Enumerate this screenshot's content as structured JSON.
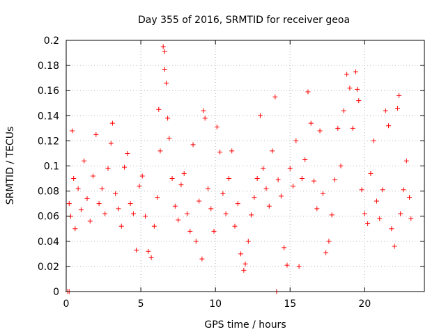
{
  "chart_data": {
    "type": "scatter",
    "title": "Day 355 of 2016, SRMTID for receiver geoa",
    "xlabel": "GPS time / hours",
    "ylabel": "SRMTID / TECUs",
    "xlim": [
      0,
      24
    ],
    "ylim": [
      0,
      0.2
    ],
    "xticks": [
      0,
      5,
      10,
      15,
      20
    ],
    "xtick_labels": [
      "0",
      "5",
      "10",
      "15",
      "20"
    ],
    "yticks": [
      0,
      0.02,
      0.04,
      0.06,
      0.08,
      0.1,
      0.12,
      0.14,
      0.16,
      0.18,
      0.2
    ],
    "ytick_labels": [
      "0",
      "0.02",
      "0.04",
      "0.06",
      "0.08",
      "0.1",
      "0.12",
      "0.14",
      "0.16",
      "0.18",
      "0.2"
    ],
    "grid": true,
    "marker": "+",
    "color": "#ff0000",
    "series": [
      {
        "name": "SRMTID",
        "points": [
          [
            0.1,
            0.0
          ],
          [
            0.2,
            0.0
          ],
          [
            14.1,
            0.0
          ],
          [
            0.2,
            0.07
          ],
          [
            0.3,
            0.06
          ],
          [
            0.4,
            0.128
          ],
          [
            0.5,
            0.09
          ],
          [
            0.6,
            0.05
          ],
          [
            0.8,
            0.082
          ],
          [
            1.0,
            0.065
          ],
          [
            1.2,
            0.104
          ],
          [
            1.4,
            0.074
          ],
          [
            1.6,
            0.056
          ],
          [
            1.8,
            0.092
          ],
          [
            2.0,
            0.125
          ],
          [
            2.2,
            0.07
          ],
          [
            2.4,
            0.082
          ],
          [
            2.6,
            0.062
          ],
          [
            2.8,
            0.098
          ],
          [
            3.0,
            0.118
          ],
          [
            3.1,
            0.134
          ],
          [
            3.3,
            0.078
          ],
          [
            3.5,
            0.066
          ],
          [
            3.7,
            0.052
          ],
          [
            3.9,
            0.099
          ],
          [
            4.1,
            0.11
          ],
          [
            4.3,
            0.07
          ],
          [
            4.5,
            0.062
          ],
          [
            4.7,
            0.033
          ],
          [
            4.9,
            0.084
          ],
          [
            5.1,
            0.092
          ],
          [
            5.3,
            0.06
          ],
          [
            5.5,
            0.032
          ],
          [
            5.7,
            0.027
          ],
          [
            5.9,
            0.052
          ],
          [
            6.1,
            0.075
          ],
          [
            6.2,
            0.145
          ],
          [
            6.3,
            0.112
          ],
          [
            6.5,
            0.195
          ],
          [
            6.6,
            0.191
          ],
          [
            6.6,
            0.177
          ],
          [
            6.7,
            0.166
          ],
          [
            6.8,
            0.138
          ],
          [
            6.9,
            0.122
          ],
          [
            7.1,
            0.09
          ],
          [
            7.3,
            0.068
          ],
          [
            7.5,
            0.057
          ],
          [
            7.7,
            0.085
          ],
          [
            7.9,
            0.094
          ],
          [
            8.1,
            0.062
          ],
          [
            8.3,
            0.048
          ],
          [
            8.5,
            0.117
          ],
          [
            8.7,
            0.04
          ],
          [
            8.9,
            0.072
          ],
          [
            9.1,
            0.026
          ],
          [
            9.2,
            0.144
          ],
          [
            9.3,
            0.138
          ],
          [
            9.5,
            0.082
          ],
          [
            9.7,
            0.066
          ],
          [
            9.9,
            0.048
          ],
          [
            10.1,
            0.131
          ],
          [
            10.3,
            0.111
          ],
          [
            10.5,
            0.078
          ],
          [
            10.7,
            0.062
          ],
          [
            10.9,
            0.09
          ],
          [
            11.1,
            0.112
          ],
          [
            11.3,
            0.052
          ],
          [
            11.5,
            0.07
          ],
          [
            11.7,
            0.03
          ],
          [
            11.9,
            0.017
          ],
          [
            12.0,
            0.022
          ],
          [
            12.2,
            0.04
          ],
          [
            12.4,
            0.061
          ],
          [
            12.6,
            0.075
          ],
          [
            12.8,
            0.09
          ],
          [
            13.0,
            0.14
          ],
          [
            13.2,
            0.098
          ],
          [
            13.4,
            0.082
          ],
          [
            13.6,
            0.068
          ],
          [
            13.8,
            0.112
          ],
          [
            14.0,
            0.155
          ],
          [
            14.2,
            0.089
          ],
          [
            14.4,
            0.076
          ],
          [
            14.6,
            0.035
          ],
          [
            14.8,
            0.021
          ],
          [
            15.0,
            0.098
          ],
          [
            15.2,
            0.084
          ],
          [
            15.4,
            0.12
          ],
          [
            15.6,
            0.02
          ],
          [
            15.8,
            0.09
          ],
          [
            16.0,
            0.105
          ],
          [
            16.2,
            0.159
          ],
          [
            16.4,
            0.134
          ],
          [
            16.6,
            0.088
          ],
          [
            16.8,
            0.066
          ],
          [
            17.0,
            0.128
          ],
          [
            17.2,
            0.078
          ],
          [
            17.4,
            0.031
          ],
          [
            17.6,
            0.04
          ],
          [
            17.8,
            0.061
          ],
          [
            18.0,
            0.089
          ],
          [
            18.2,
            0.13
          ],
          [
            18.4,
            0.1
          ],
          [
            18.6,
            0.144
          ],
          [
            18.8,
            0.173
          ],
          [
            19.0,
            0.162
          ],
          [
            19.2,
            0.13
          ],
          [
            19.4,
            0.175
          ],
          [
            19.5,
            0.161
          ],
          [
            19.6,
            0.152
          ],
          [
            19.8,
            0.081
          ],
          [
            20.0,
            0.062
          ],
          [
            20.2,
            0.054
          ],
          [
            20.4,
            0.094
          ],
          [
            20.6,
            0.12
          ],
          [
            20.8,
            0.072
          ],
          [
            21.0,
            0.058
          ],
          [
            21.2,
            0.081
          ],
          [
            21.4,
            0.144
          ],
          [
            21.6,
            0.132
          ],
          [
            21.8,
            0.05
          ],
          [
            22.0,
            0.036
          ],
          [
            22.2,
            0.146
          ],
          [
            22.3,
            0.156
          ],
          [
            22.4,
            0.062
          ],
          [
            22.6,
            0.081
          ],
          [
            22.8,
            0.104
          ],
          [
            23.0,
            0.075
          ],
          [
            23.1,
            0.058
          ]
        ]
      }
    ]
  }
}
